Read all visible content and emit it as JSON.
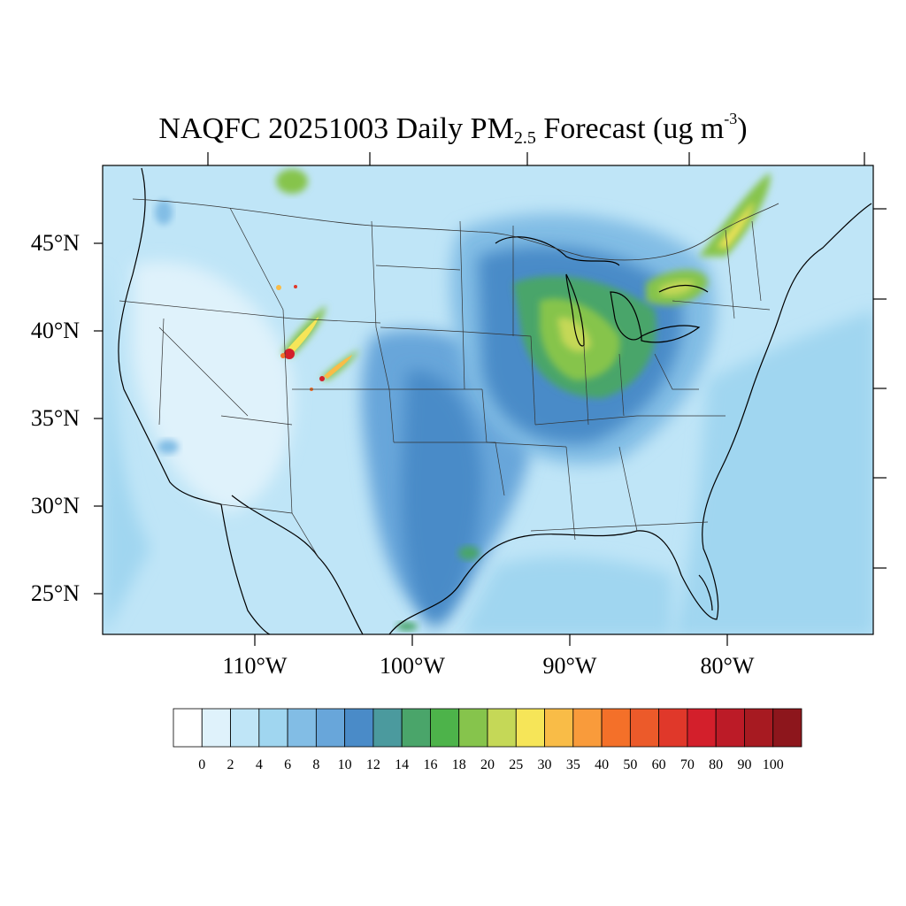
{
  "title": {
    "prefix": "NAQFC 20251003 Daily PM",
    "sub": "2.5",
    "middle": " Forecast (ug m",
    "sup": "-3",
    "suffix": ")"
  },
  "map": {
    "projection": "Lambert Conformal",
    "lat_ticks": [
      {
        "value": 45,
        "label": "45°N"
      },
      {
        "value": 40,
        "label": "40°N"
      },
      {
        "value": 35,
        "label": "35°N"
      },
      {
        "value": 30,
        "label": "30°N"
      },
      {
        "value": 25,
        "label": "25°N"
      }
    ],
    "lon_ticks": [
      {
        "value": -110,
        "label": "110°W"
      },
      {
        "value": -100,
        "label": "100°W"
      },
      {
        "value": -90,
        "label": "90°W"
      },
      {
        "value": -80,
        "label": "80°W"
      }
    ],
    "ocean_color": "#a0d6f0",
    "background_color": "#bfe3f5"
  },
  "colorbar": {
    "colors": [
      "#ffffff",
      "#dff2fb",
      "#bfe5f7",
      "#a0d6f0",
      "#82bde5",
      "#68a6da",
      "#4a8bc8",
      "#4b9a9e",
      "#4aa56a",
      "#4db34a",
      "#86c44c",
      "#c5d857",
      "#f6e558",
      "#f9bc47",
      "#f99b3b",
      "#f47029",
      "#ec5a2a",
      "#e0382a",
      "#d31f2b",
      "#bc1b27",
      "#a71a21",
      "#8d161c"
    ],
    "labels": [
      "0",
      "2",
      "4",
      "6",
      "8",
      "10",
      "12",
      "14",
      "16",
      "18",
      "20",
      "25",
      "30",
      "35",
      "40",
      "50",
      "60",
      "70",
      "80",
      "90",
      "100"
    ]
  }
}
